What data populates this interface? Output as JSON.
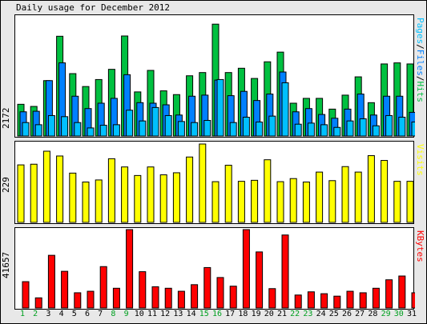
{
  "title": "Daily usage for December 2012",
  "colors": {
    "hits": "#00c040",
    "files": "#0080ff",
    "pages": "#00c0ff",
    "visits": "#ffff00",
    "kbytes": "#ff0000",
    "weekday": "#000000",
    "weekend": "#00a020"
  },
  "panels": {
    "top": {
      "max_label": "2172",
      "legend": [
        {
          "text": "Pages",
          "color": "#00c0ff"
        },
        {
          "text": "/",
          "color": "#000000"
        },
        {
          "text": "Files",
          "color": "#0080ff"
        },
        {
          "text": "/",
          "color": "#000000"
        },
        {
          "text": "Hits",
          "color": "#00c040"
        }
      ]
    },
    "middle": {
      "max_label": "229",
      "legend": [
        {
          "text": "Visits",
          "color": "#ffff00"
        }
      ]
    },
    "bottom": {
      "max_label": "41657",
      "legend": [
        {
          "text": "KBytes",
          "color": "#ff0000"
        }
      ]
    }
  },
  "chart_data": [
    {
      "type": "bar",
      "title": "Daily usage for December 2012",
      "ylim": [
        0,
        2172
      ],
      "categories": [
        "1",
        "2",
        "3",
        "4",
        "5",
        "6",
        "7",
        "8",
        "9",
        "10",
        "11",
        "12",
        "13",
        "14",
        "15",
        "16",
        "17",
        "18",
        "19",
        "20",
        "21",
        "22",
        "23",
        "24",
        "25",
        "26",
        "27",
        "28",
        "29",
        "30",
        "31"
      ],
      "series": [
        {
          "name": "Hits",
          "values": [
            590,
            550,
            1030,
            1855,
            1160,
            920,
            1050,
            1240,
            1860,
            820,
            1220,
            840,
            770,
            1120,
            1180,
            2080,
            1180,
            1260,
            1070,
            1380,
            1560,
            610,
            700,
            700,
            500,
            760,
            1100,
            620,
            1340,
            1360,
            1340
          ]
        },
        {
          "name": "Files",
          "values": [
            450,
            460,
            1030,
            1360,
            740,
            510,
            610,
            700,
            1140,
            620,
            610,
            580,
            390,
            740,
            760,
            1040,
            750,
            830,
            660,
            780,
            1190,
            450,
            510,
            400,
            330,
            500,
            780,
            390,
            740,
            740,
            440
          ]
        },
        {
          "name": "Pages",
          "values": [
            250,
            210,
            380,
            360,
            250,
            150,
            200,
            210,
            480,
            280,
            530,
            380,
            270,
            250,
            290,
            1050,
            250,
            350,
            260,
            370,
            990,
            220,
            240,
            210,
            160,
            280,
            320,
            190,
            380,
            350,
            260
          ]
        }
      ]
    },
    {
      "type": "bar",
      "ylim": [
        0,
        229
      ],
      "categories": [
        "1",
        "2",
        "3",
        "4",
        "5",
        "6",
        "7",
        "8",
        "9",
        "10",
        "11",
        "12",
        "13",
        "14",
        "15",
        "16",
        "17",
        "18",
        "19",
        "20",
        "21",
        "22",
        "23",
        "24",
        "25",
        "26",
        "27",
        "28",
        "29",
        "30",
        "31"
      ],
      "series": [
        {
          "name": "Visits",
          "values": [
            168,
            170,
            208,
            194,
            144,
            118,
            124,
            186,
            162,
            137,
            162,
            139,
            145,
            191,
            229,
            119,
            167,
            120,
            123,
            183,
            119,
            128,
            118,
            147,
            122,
            163,
            147,
            195,
            181,
            120,
            120
          ]
        }
      ]
    },
    {
      "type": "bar",
      "ylim": [
        0,
        41657
      ],
      "categories": [
        "1",
        "2",
        "3",
        "4",
        "5",
        "6",
        "7",
        "8",
        "9",
        "10",
        "11",
        "12",
        "13",
        "14",
        "15",
        "16",
        "17",
        "18",
        "19",
        "20",
        "21",
        "22",
        "23",
        "24",
        "25",
        "26",
        "27",
        "28",
        "29",
        "30",
        "31"
      ],
      "series": [
        {
          "name": "KBytes",
          "values": [
            14000,
            5400,
            28000,
            19500,
            8100,
            8900,
            22000,
            10500,
            41657,
            19300,
            11300,
            10500,
            8900,
            12400,
            21500,
            16200,
            11600,
            41657,
            29800,
            10300,
            38800,
            6900,
            8600,
            7600,
            6300,
            8900,
            8100,
            10500,
            15000,
            17000,
            8100
          ]
        }
      ]
    }
  ]
}
